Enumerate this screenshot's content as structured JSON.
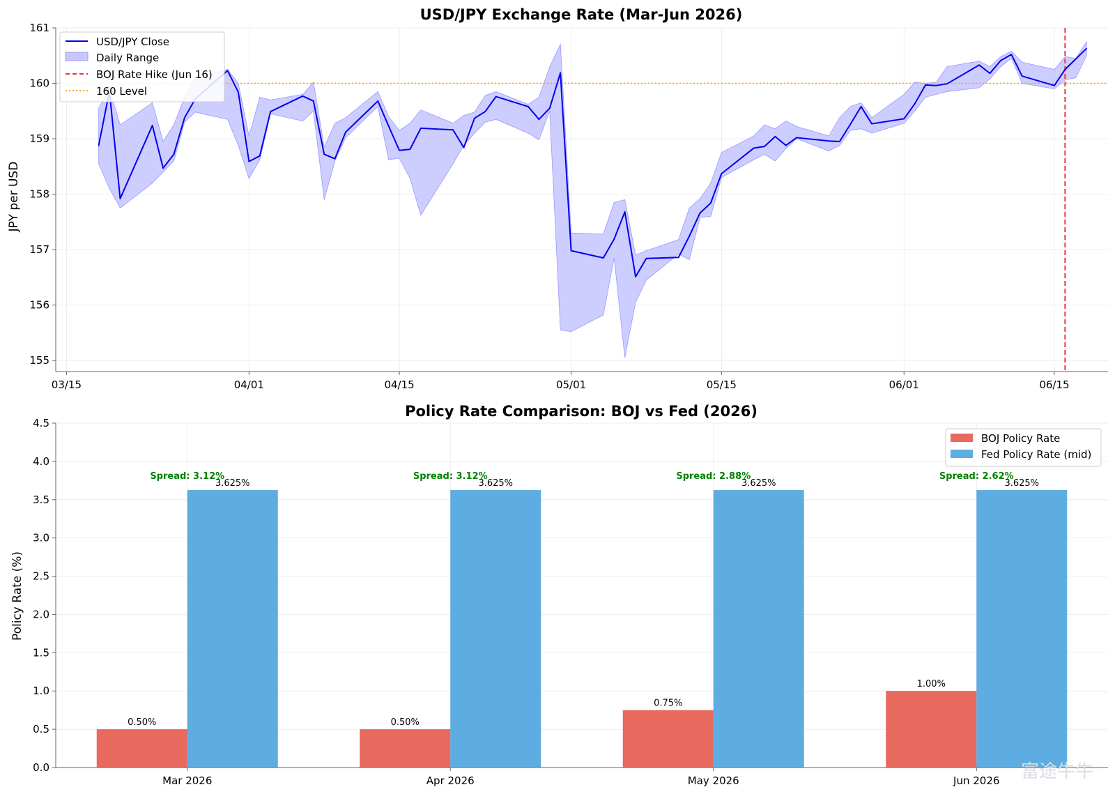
{
  "chart_data": [
    {
      "type": "line",
      "title": "USD/JPY Exchange Rate (Mar-Jun 2026)",
      "xlabel": "",
      "ylabel": "JPY per USD",
      "ylim": [
        154.8,
        161
      ],
      "xlim": [
        "2026-03-14",
        "2026-06-20"
      ],
      "x_ticks": [
        "03/15",
        "04/01",
        "04/15",
        "05/01",
        "05/15",
        "06/01",
        "06/15"
      ],
      "x_tick_dates": [
        "2026-03-15",
        "2026-04-01",
        "2026-04-15",
        "2026-05-01",
        "2026-05-15",
        "2026-06-01",
        "2026-06-15"
      ],
      "y_ticks": [
        155,
        156,
        157,
        158,
        159,
        160,
        161
      ],
      "grid": true,
      "legend_position": "top-left",
      "colors": {
        "close": "#0000ee",
        "range": "#c8c8ff",
        "range_edge": "#9999ff",
        "boj": "#ee3333",
        "level": "#f5a623"
      },
      "legend": [
        "USD/JPY Close",
        "Daily Range",
        "BOJ Rate Hike (Jun 16)",
        "160 Level"
      ],
      "boj_hike_date": "2026-06-16",
      "reference_level": 160,
      "series": [
        {
          "name": "USD/JPY Close",
          "values": [
            [
              "2026-03-18",
              158.88
            ],
            [
              "2026-03-19",
              159.86
            ],
            [
              "2026-03-20",
              157.92
            ],
            [
              "2026-03-23",
              159.24
            ],
            [
              "2026-03-24",
              158.47
            ],
            [
              "2026-03-25",
              158.72
            ],
            [
              "2026-03-26",
              159.38
            ],
            [
              "2026-03-27",
              159.72
            ],
            [
              "2026-03-30",
              160.23
            ],
            [
              "2026-03-31",
              159.84
            ],
            [
              "2026-04-01",
              158.59
            ],
            [
              "2026-04-02",
              158.69
            ],
            [
              "2026-04-03",
              159.49
            ],
            [
              "2026-04-06",
              159.77
            ],
            [
              "2026-04-07",
              159.68
            ],
            [
              "2026-04-08",
              158.72
            ],
            [
              "2026-04-09",
              158.64
            ],
            [
              "2026-04-10",
              159.12
            ],
            [
              "2026-04-13",
              159.68
            ],
            [
              "2026-04-14",
              159.23
            ],
            [
              "2026-04-15",
              158.79
            ],
            [
              "2026-04-16",
              158.81
            ],
            [
              "2026-04-17",
              159.19
            ],
            [
              "2026-04-20",
              159.16
            ],
            [
              "2026-04-21",
              158.84
            ],
            [
              "2026-04-22",
              159.37
            ],
            [
              "2026-04-23",
              159.49
            ],
            [
              "2026-04-24",
              159.76
            ],
            [
              "2026-04-27",
              159.58
            ],
            [
              "2026-04-28",
              159.35
            ],
            [
              "2026-04-29",
              159.55
            ],
            [
              "2026-04-30",
              160.19
            ],
            [
              "2026-05-01",
              156.98
            ],
            [
              "2026-05-04",
              156.85
            ],
            [
              "2026-05-05",
              157.19
            ],
            [
              "2026-05-06",
              157.68
            ],
            [
              "2026-05-07",
              156.51
            ],
            [
              "2026-05-08",
              156.84
            ],
            [
              "2026-05-11",
              156.86
            ],
            [
              "2026-05-12",
              157.24
            ],
            [
              "2026-05-13",
              157.66
            ],
            [
              "2026-05-14",
              157.84
            ],
            [
              "2026-05-15",
              158.37
            ],
            [
              "2026-05-18",
              158.83
            ],
            [
              "2026-05-19",
              158.86
            ],
            [
              "2026-05-20",
              159.04
            ],
            [
              "2026-05-21",
              158.88
            ],
            [
              "2026-05-22",
              159.02
            ],
            [
              "2026-05-25",
              158.96
            ],
            [
              "2026-05-26",
              158.95
            ],
            [
              "2026-05-27",
              159.26
            ],
            [
              "2026-05-28",
              159.58
            ],
            [
              "2026-05-29",
              159.27
            ],
            [
              "2026-06-01",
              159.36
            ],
            [
              "2026-06-02",
              159.63
            ],
            [
              "2026-06-03",
              159.97
            ],
            [
              "2026-06-04",
              159.96
            ],
            [
              "2026-06-05",
              159.99
            ],
            [
              "2026-06-08",
              160.33
            ],
            [
              "2026-06-09",
              160.18
            ],
            [
              "2026-06-10",
              160.41
            ],
            [
              "2026-06-11",
              160.52
            ],
            [
              "2026-06-12",
              160.13
            ],
            [
              "2026-06-15",
              159.96
            ],
            [
              "2026-06-16",
              160.25
            ],
            [
              "2026-06-17",
              160.44
            ],
            [
              "2026-06-18",
              160.63
            ]
          ]
        },
        {
          "name": "Daily Range",
          "high": [
            159.55,
            159.9,
            159.25,
            159.65,
            158.95,
            159.25,
            159.75,
            160.1,
            160.25,
            160.0,
            159.05,
            159.75,
            159.7,
            159.8,
            160.02,
            158.85,
            159.28,
            159.38,
            159.85,
            159.4,
            159.15,
            159.28,
            159.52,
            159.28,
            159.42,
            159.48,
            159.78,
            159.85,
            159.62,
            159.75,
            160.3,
            160.7,
            157.3,
            157.28,
            157.85,
            157.9,
            156.9,
            156.98,
            157.18,
            157.75,
            157.92,
            158.2,
            158.75,
            159.05,
            159.25,
            159.18,
            159.32,
            159.22,
            159.05,
            159.38,
            159.58,
            159.65,
            159.38,
            159.8,
            160.02,
            160.0,
            160.02,
            160.3,
            160.4,
            160.3,
            160.48,
            160.58,
            160.38,
            160.25,
            160.48,
            160.45,
            160.75
          ],
          "low": [
            158.55,
            158.1,
            157.75,
            158.2,
            158.4,
            158.6,
            159.3,
            159.48,
            159.35,
            158.88,
            158.28,
            158.62,
            159.45,
            159.32,
            159.5,
            157.9,
            158.6,
            159.02,
            159.58,
            158.62,
            158.65,
            158.28,
            157.62,
            158.55,
            158.88,
            159.1,
            159.3,
            159.35,
            159.1,
            158.98,
            159.5,
            155.55,
            155.52,
            155.82,
            156.85,
            155.05,
            156.05,
            156.45,
            156.92,
            156.82,
            157.58,
            157.6,
            158.3,
            158.62,
            158.72,
            158.6,
            158.82,
            159.0,
            158.78,
            158.88,
            159.15,
            159.18,
            159.1,
            159.28,
            159.5,
            159.75,
            159.8,
            159.85,
            159.92,
            160.08,
            160.3,
            160.45,
            160.0,
            159.9,
            160.06,
            160.1,
            160.5
          ]
        }
      ]
    },
    {
      "type": "bar",
      "title": "Policy Rate Comparison: BOJ vs Fed (2026)",
      "xlabel": "",
      "ylabel": "Policy Rate (%)",
      "ylim": [
        0,
        4.5
      ],
      "y_ticks": [
        "0.0",
        "0.5",
        "1.0",
        "1.5",
        "2.0",
        "2.5",
        "3.0",
        "3.5",
        "4.0",
        "4.5"
      ],
      "grid": true,
      "legend_position": "top-right",
      "categories": [
        "Mar 2026",
        "Apr 2026",
        "May 2026",
        "Jun 2026"
      ],
      "colors": {
        "boj": "#e8695e",
        "fed": "#5dade2",
        "spread": "#008000"
      },
      "series": [
        {
          "name": "BOJ Policy Rate",
          "values": [
            0.5,
            0.5,
            0.75,
            1.0
          ],
          "labels": [
            "0.50%",
            "0.50%",
            "0.75%",
            "1.00%"
          ]
        },
        {
          "name": "Fed Policy Rate (mid)",
          "values": [
            3.625,
            3.625,
            3.625,
            3.625
          ],
          "labels": [
            "3.625%",
            "3.625%",
            "3.625%",
            "3.625%"
          ]
        }
      ],
      "spread_labels": [
        "Spread: 3.12%",
        "Spread: 3.12%",
        "Spread: 2.88%",
        "Spread: 2.62%"
      ]
    }
  ],
  "watermark": "富途牛牛"
}
